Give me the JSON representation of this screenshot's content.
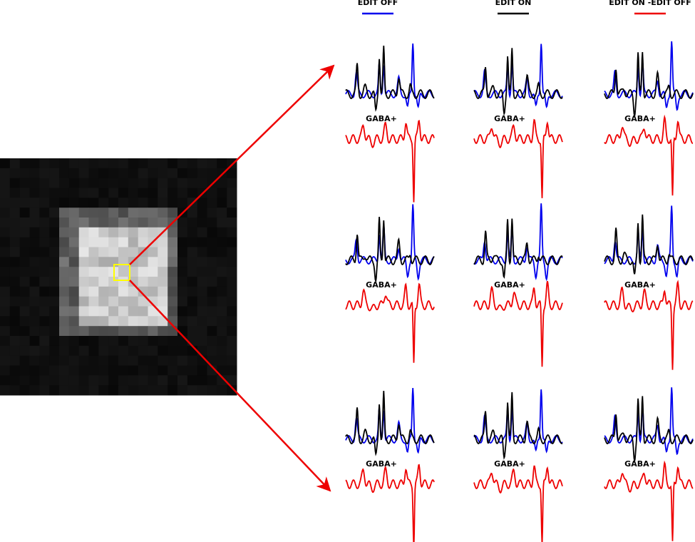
{
  "legend": [
    {
      "label": "EDIT OFF",
      "color": "#0000ee"
    },
    {
      "label": "EDIT ON",
      "color": "#000000"
    },
    {
      "label": "EDIT ON -EDIT OFF",
      "color": "#ee0000"
    }
  ],
  "grid": [
    [
      "GABA+",
      "GABA+",
      "GABA+"
    ],
    [
      "GABA+",
      "GABA+",
      "GABA+"
    ],
    [
      "GABA+",
      "GABA+",
      "GABA+"
    ]
  ]
}
